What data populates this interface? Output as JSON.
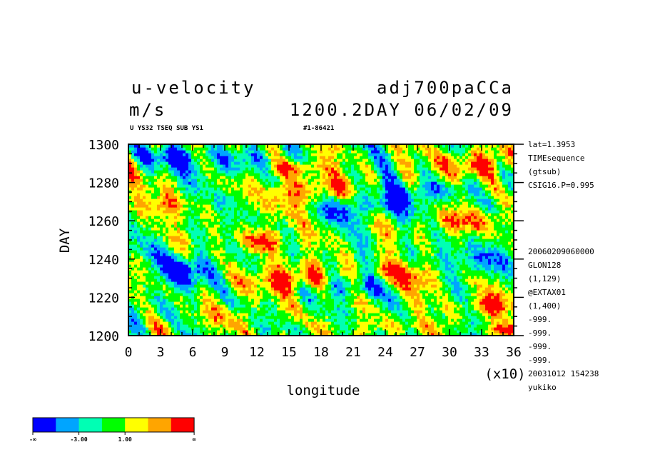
{
  "header": {
    "variable": "u-velocity",
    "experiment": "adj700paCCa",
    "units": "m/s",
    "time": "1200.2DAY 06/02/09",
    "subtitle_left": "U YS32 TSEQ SUB YS1",
    "subtitle_right": "#1-86421"
  },
  "side_info": {
    "top": [
      "lat=1.3953",
      "TIMEsequence",
      "(gtsub)",
      "CSIG16.P=0.995"
    ],
    "bottom": [
      "20060209060000",
      "GLON128",
      "(1,129)",
      "@EXTAX01",
      "(1,400)",
      "-999.",
      "-999.",
      "-999.",
      "-999.",
      "20031012 154238",
      "yukiko"
    ]
  },
  "legend": {
    "colors": [
      "#0000ff",
      "#00a5ff",
      "#00ffb4",
      "#00ff00",
      "#ffff00",
      "#ffa500",
      "#ff0000"
    ],
    "labels": [
      "-∞",
      "-3.00",
      "1.00",
      "∞"
    ]
  },
  "chart_data": {
    "type": "heatmap",
    "title": "u-velocity",
    "xlabel": "longitude",
    "ylabel": "DAY",
    "x_multiplier_label": "(x10)",
    "xlim": [
      0,
      36
    ],
    "ylim": [
      1200,
      1300
    ],
    "x_ticks": [
      "0",
      "3",
      "6",
      "9",
      "12",
      "15",
      "18",
      "21",
      "24",
      "27",
      "30",
      "33",
      "36"
    ],
    "y_ticks": [
      "1200",
      "1220",
      "1240",
      "1260",
      "1280",
      "1300"
    ],
    "levels": [
      -3.0,
      1.0
    ],
    "color_levels": [
      "#0000ff",
      "#00a5ff",
      "#00ffb4",
      "#00ff00",
      "#ffff00",
      "#ffa500",
      "#ff0000"
    ],
    "blobs": [
      {
        "x": 5.5,
        "y": 1234,
        "sx": 2.0,
        "sy": 6,
        "v": -1.0
      },
      {
        "x": 4.0,
        "y": 1294,
        "sx": 2.0,
        "sy": 4,
        "v": -0.8
      },
      {
        "x": 10.0,
        "y": 1290,
        "sx": 3.0,
        "sy": 5,
        "v": -0.6
      },
      {
        "x": 15.0,
        "y": 1230,
        "sx": 2.5,
        "sy": 5,
        "v": 1.0
      },
      {
        "x": 12.5,
        "y": 1250,
        "sx": 1.5,
        "sy": 4,
        "v": 0.9
      },
      {
        "x": 17.0,
        "y": 1275,
        "sx": 2.5,
        "sy": 6,
        "v": 0.9
      },
      {
        "x": 15.0,
        "y": 1288,
        "sx": 2.0,
        "sy": 3,
        "v": 0.8
      },
      {
        "x": 22.0,
        "y": 1268,
        "sx": 3.0,
        "sy": 5,
        "v": -0.9
      },
      {
        "x": 21.0,
        "y": 1226,
        "sx": 2.5,
        "sy": 4,
        "v": -0.7
      },
      {
        "x": 26.5,
        "y": 1232,
        "sx": 3.0,
        "sy": 5,
        "v": 0.8
      },
      {
        "x": 28.0,
        "y": 1276,
        "sx": 2.5,
        "sy": 4,
        "v": -0.6
      },
      {
        "x": 32.5,
        "y": 1290,
        "sx": 2.0,
        "sy": 5,
        "v": 1.0
      },
      {
        "x": 31.5,
        "y": 1260,
        "sx": 2.5,
        "sy": 4,
        "v": 0.7
      },
      {
        "x": 32.0,
        "y": 1238,
        "sx": 2.5,
        "sy": 6,
        "v": -0.8
      },
      {
        "x": 34.0,
        "y": 1216,
        "sx": 2.0,
        "sy": 4,
        "v": 0.9
      },
      {
        "x": 1.0,
        "y": 1212,
        "sx": 1.5,
        "sy": 5,
        "v": -0.4
      },
      {
        "x": 2.5,
        "y": 1268,
        "sx": 2.0,
        "sy": 4,
        "v": 0.5
      },
      {
        "x": 35.5,
        "y": 1203,
        "sx": 1.5,
        "sy": 3,
        "v": 0.8
      },
      {
        "x": 8.5,
        "y": 1210,
        "sx": 2.0,
        "sy": 4,
        "v": 0.4
      },
      {
        "x": 24.5,
        "y": 1205,
        "sx": 2.0,
        "sy": 3,
        "v": 0.4
      }
    ]
  }
}
